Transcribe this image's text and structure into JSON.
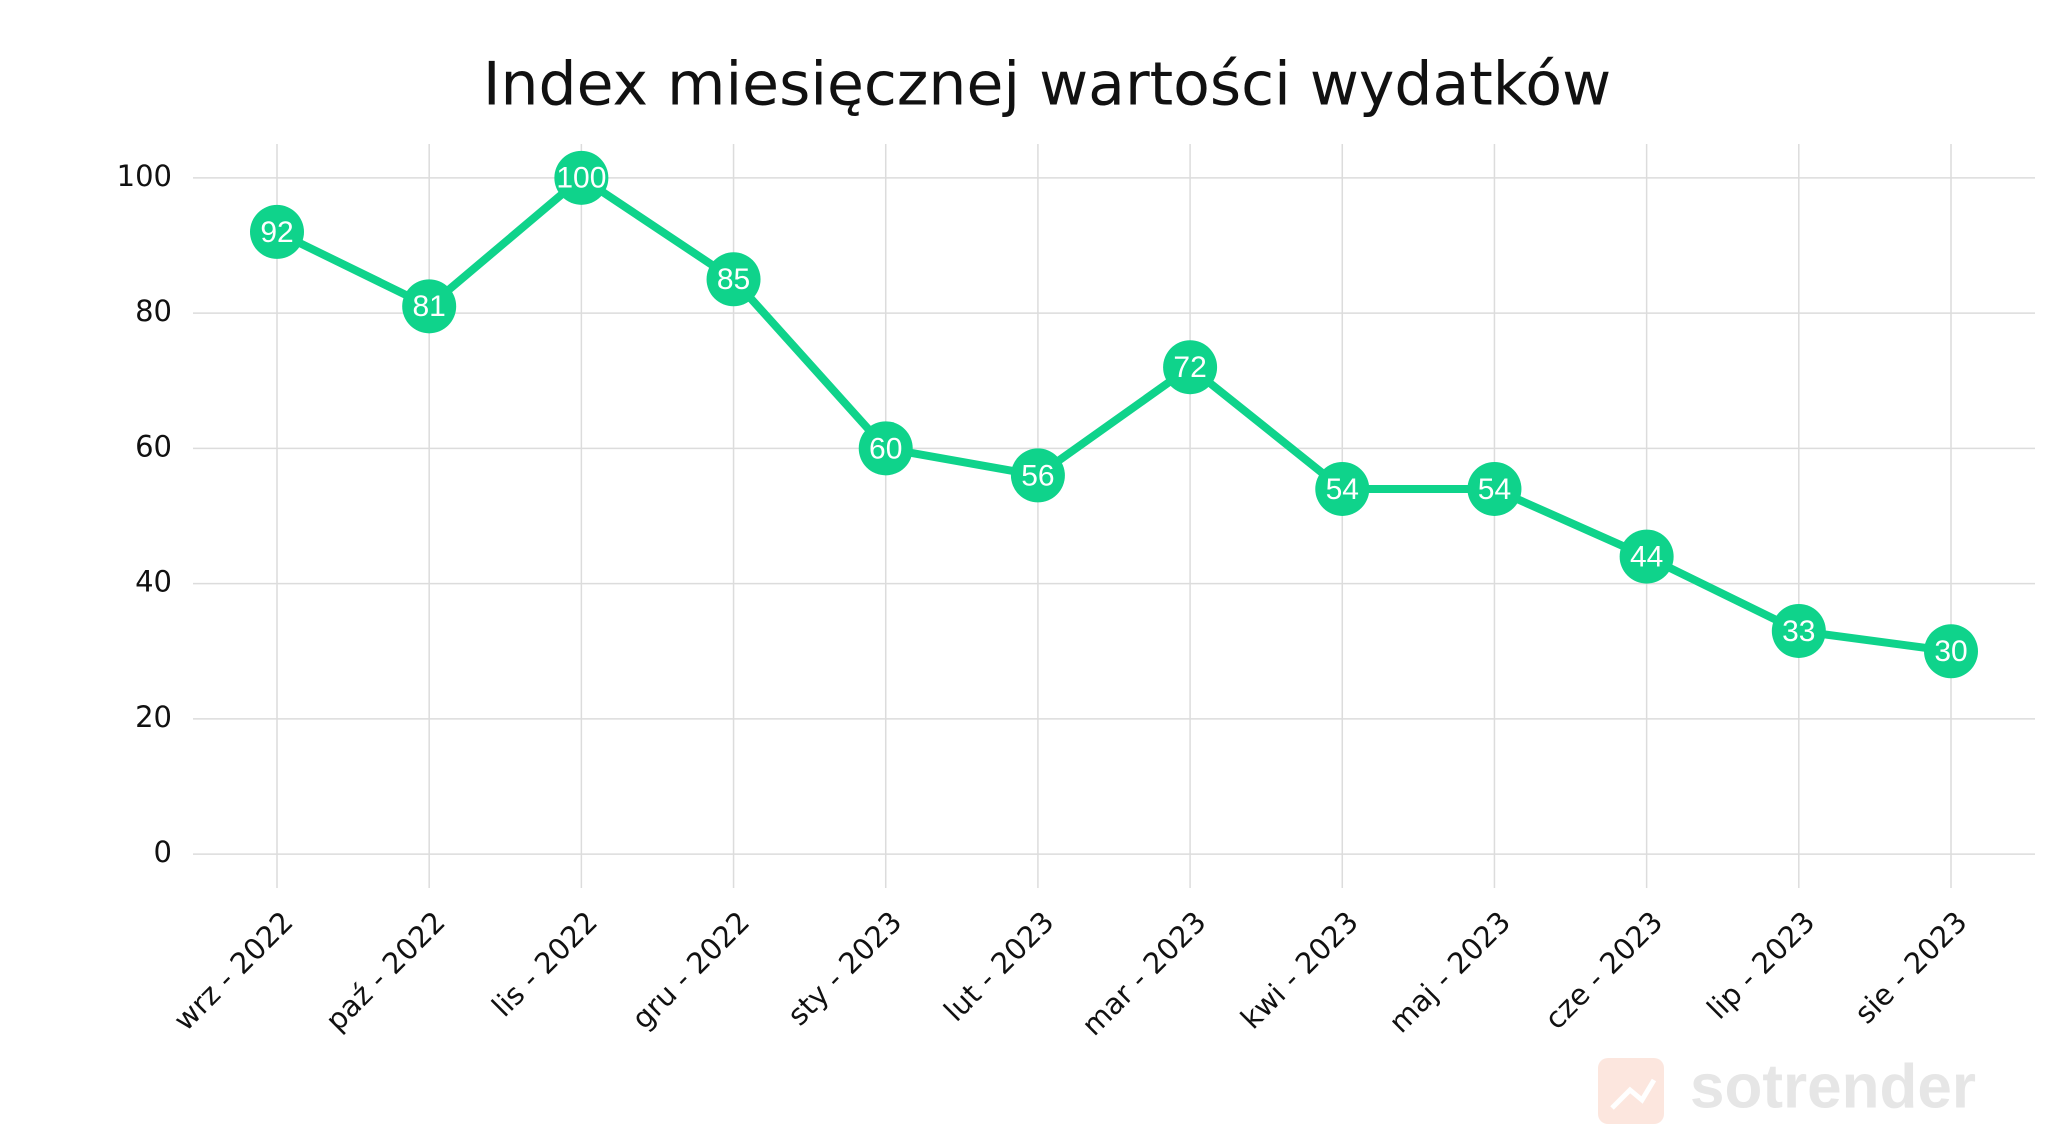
{
  "chart_data": {
    "type": "line",
    "title": "Index miesięcznej wartości wydatków",
    "categories": [
      "wrz - 2022",
      "paź - 2022",
      "lis - 2022",
      "gru - 2022",
      "sty - 2023",
      "lut - 2023",
      "mar - 2023",
      "kwi - 2023",
      "maj - 2023",
      "cze - 2023",
      "lip - 2023",
      "sie - 2023"
    ],
    "values": [
      92,
      81,
      100,
      85,
      60,
      56,
      72,
      54,
      54,
      44,
      33,
      30
    ],
    "color": "#0fd38b",
    "ylim": [
      -5,
      105
    ],
    "yticks": [
      0,
      20,
      40,
      60,
      80,
      100
    ],
    "grid": true,
    "watermark": "sotrender"
  }
}
